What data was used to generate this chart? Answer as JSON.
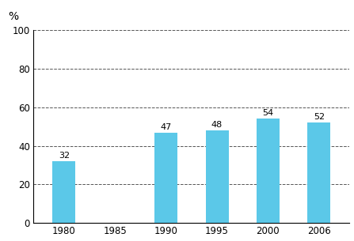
{
  "categories": [
    "1980",
    "1985",
    "1990",
    "1995",
    "2000",
    "2006"
  ],
  "values": [
    32,
    null,
    47,
    48,
    54,
    52
  ],
  "bar_color": "#5BC8E8",
  "bar_width": 0.45,
  "ylim": [
    0,
    100
  ],
  "yticks": [
    0,
    20,
    40,
    60,
    80,
    100
  ],
  "ylabel": "%",
  "bg_color": "#ffffff",
  "label_fontsize": 8,
  "axis_fontsize": 8.5
}
